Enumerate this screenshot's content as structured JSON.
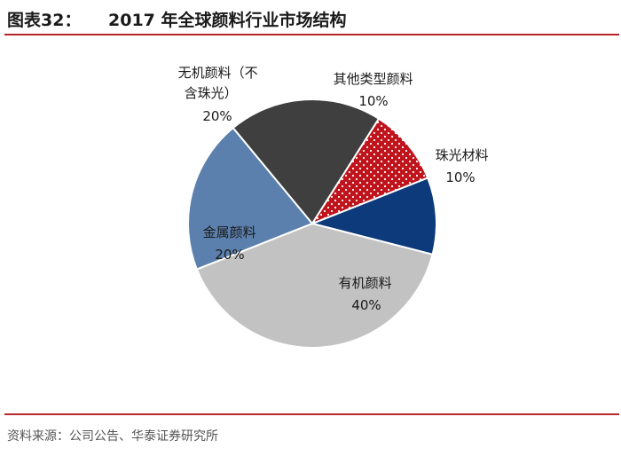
{
  "header": {
    "figure_label": "图表32：",
    "title": "2017 年全球颜料行业市场结构"
  },
  "source": "资料来源：公司公告、华泰证券研究所",
  "colors": {
    "accent_rule": "#b5262a",
    "pearl": "#0d3a7a",
    "organic": "#c2c2c2",
    "metal": "#5b80ad",
    "inorganic": "#3f3f3f",
    "other": "#c0141c"
  },
  "chart_data": {
    "type": "pie",
    "title": "2017 年全球颜料行业市场结构",
    "unit": "%",
    "slices": [
      {
        "key": "pearl",
        "label_lines": [
          "珠光材料"
        ],
        "value": 10,
        "value_label": "10%"
      },
      {
        "key": "organic",
        "label_lines": [
          "有机颜料"
        ],
        "value": 40,
        "value_label": "40%"
      },
      {
        "key": "metal",
        "label_lines": [
          "金属颜料"
        ],
        "value": 20,
        "value_label": "20%"
      },
      {
        "key": "inorganic",
        "label_lines": [
          "无机颜料（不",
          "含珠光）"
        ],
        "value": 20,
        "value_label": "20%"
      },
      {
        "key": "other",
        "label_lines": [
          "其他类型颜料"
        ],
        "value": 10,
        "value_label": "10%"
      }
    ]
  }
}
